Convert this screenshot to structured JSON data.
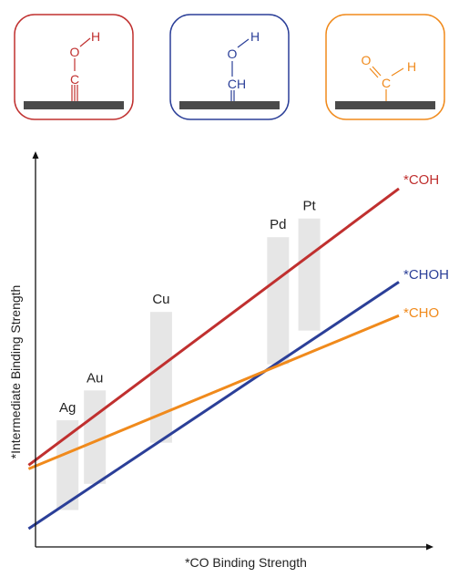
{
  "colors": {
    "coh": "#c0302f",
    "choh": "#2b3f98",
    "cho": "#f08a1c",
    "surface": "#4a4a4a",
    "band": "#e6e6e6",
    "axis": "#111111"
  },
  "adsorbates": [
    {
      "name": "*COH",
      "color": "#c0302f",
      "atoms": {
        "top": "H",
        "mid": "O",
        "bottom": "C"
      },
      "bond_to_surface": "triple"
    },
    {
      "name": "*CHOH",
      "color": "#2b3f98",
      "atoms": {
        "top": "H",
        "mid": "O",
        "bottom": "CH"
      },
      "bond_to_surface": "double"
    },
    {
      "name": "*CHO",
      "color": "#f08a1c",
      "atoms": {
        "o": "O",
        "c": "C",
        "h": "H"
      },
      "bond_to_surface": "single"
    }
  ],
  "axes": {
    "x_label": "*CO Binding Strength",
    "y_label": "*Intermediate Binding Strength"
  },
  "series": [
    {
      "name": "*COH",
      "color": "#c0302f",
      "start": [
        0.05,
        0.17
      ],
      "end": [
        1.0,
        0.91
      ]
    },
    {
      "name": "*CHOH",
      "color": "#2b3f98",
      "start": [
        0.05,
        0.0
      ],
      "end": [
        1.0,
        0.66
      ]
    },
    {
      "name": "*CHO",
      "color": "#f08a1c",
      "start": [
        0.05,
        0.16
      ],
      "end": [
        1.0,
        0.57
      ]
    }
  ],
  "metals": [
    {
      "name": "Ag",
      "x": 0.15,
      "y_low": 0.05,
      "y_high": 0.29
    },
    {
      "name": "Au",
      "x": 0.22,
      "y_low": 0.12,
      "y_high": 0.37
    },
    {
      "name": "Cu",
      "x": 0.39,
      "y_low": 0.23,
      "y_high": 0.58
    },
    {
      "name": "Pd",
      "x": 0.69,
      "y_low": 0.44,
      "y_high": 0.78
    },
    {
      "name": "Pt",
      "x": 0.77,
      "y_low": 0.53,
      "y_high": 0.83
    }
  ]
}
